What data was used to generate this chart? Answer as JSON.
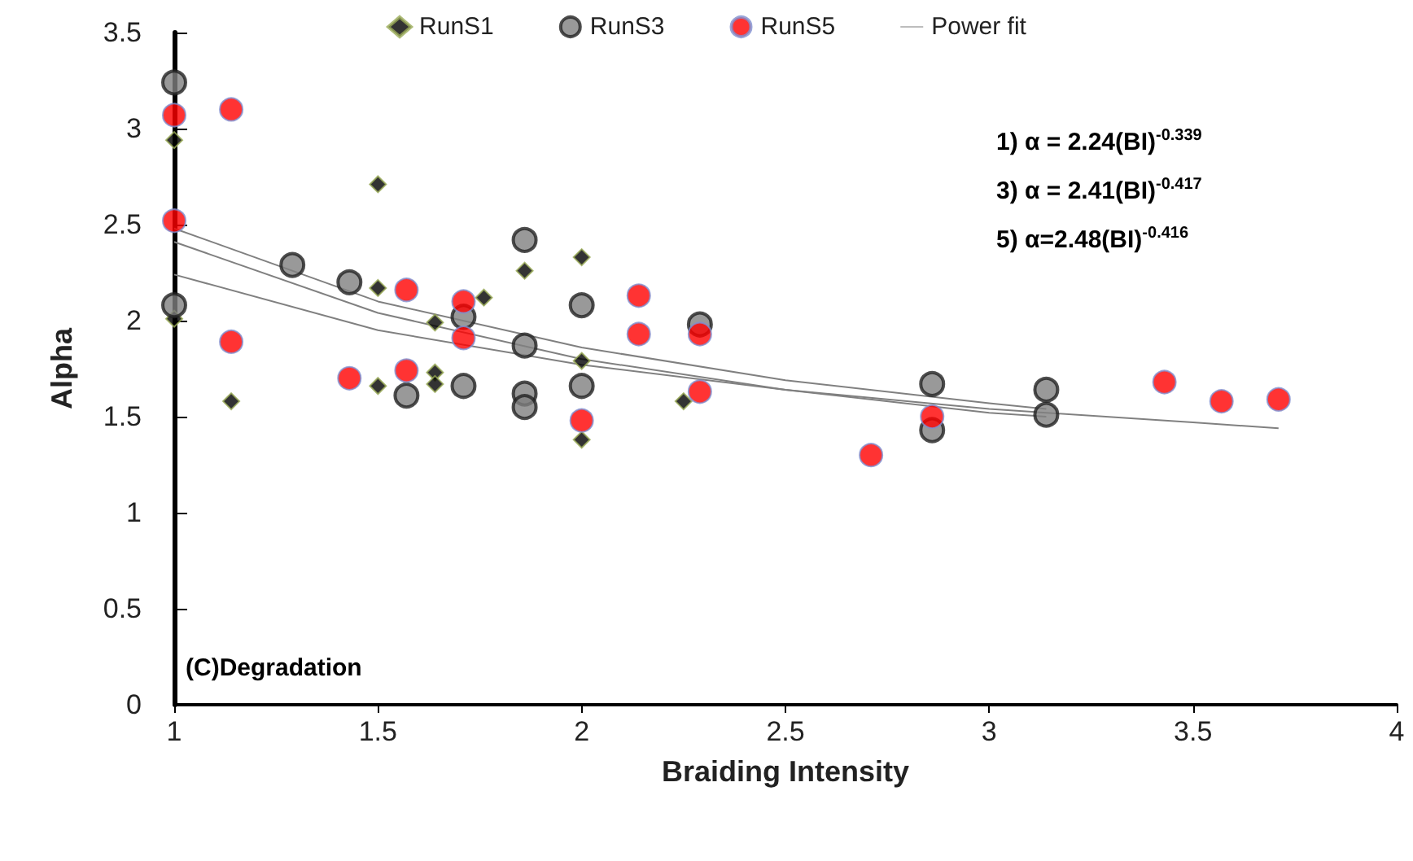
{
  "chart_data": {
    "type": "scatter",
    "xlabel": "Braiding Intensity",
    "ylabel": "Alpha",
    "xlim": [
      1,
      4
    ],
    "xticks": [
      1,
      1.5,
      2,
      2.5,
      3,
      3.5,
      4
    ],
    "ylim": [
      0,
      3.5
    ],
    "yticks": [
      0,
      0.5,
      1,
      1.5,
      2,
      2.5,
      3,
      3.5
    ],
    "grid": false,
    "legend": "top",
    "series": [
      {
        "name": "RunS1",
        "color": "#000000",
        "marker": "diamond",
        "x": [
          1,
          1,
          1.14,
          1.5,
          1.5,
          1.5,
          1.64,
          1.64,
          1.64,
          1.76,
          1.86,
          2,
          2,
          2,
          2.25
        ],
        "values": [
          2.94,
          2.01,
          1.58,
          2.71,
          2.17,
          1.66,
          1.99,
          1.73,
          1.67,
          2.12,
          2.26,
          2.33,
          1.79,
          1.38,
          1.58
        ]
      },
      {
        "name": "RunS3",
        "color": "#808080",
        "marker": "circle",
        "x": [
          1,
          1,
          1.29,
          1.43,
          1.57,
          1.71,
          1.71,
          1.86,
          1.86,
          1.86,
          1.86,
          2,
          2,
          2.29,
          2.86,
          2.86,
          3.14,
          3.14
        ],
        "values": [
          3.24,
          2.08,
          2.29,
          2.2,
          1.61,
          2.02,
          1.66,
          2.42,
          1.87,
          1.62,
          1.55,
          2.08,
          1.66,
          1.98,
          1.67,
          1.43,
          1.64,
          1.51
        ]
      },
      {
        "name": "RunS5",
        "color": "#ff0000",
        "marker": "circle",
        "x": [
          1,
          1,
          1.14,
          1.14,
          1.43,
          1.57,
          1.57,
          1.71,
          1.71,
          2,
          2.14,
          2.14,
          2.29,
          2.29,
          2.71,
          2.86,
          3.43,
          3.57,
          3.71
        ],
        "values": [
          3.07,
          2.52,
          3.1,
          1.89,
          1.7,
          2.16,
          1.74,
          2.1,
          1.91,
          1.48,
          2.13,
          1.93,
          1.93,
          1.63,
          1.3,
          1.5,
          1.68,
          1.58,
          1.59
        ]
      },
      {
        "name": "Power fit",
        "type": "line",
        "color": "#808080",
        "marker": "none",
        "x": [
          1,
          1.5,
          2,
          2.5,
          3,
          3.5,
          3.71
        ],
        "values": [
          2.24,
          1.95,
          1.77,
          1.64,
          1.54,
          1.47,
          1.44
        ]
      },
      {
        "type": "line",
        "color": "#808080",
        "marker": "none",
        "x": [
          1,
          1.5,
          2,
          2.5,
          3,
          3.14
        ],
        "values": [
          2.41,
          2.04,
          1.8,
          1.64,
          1.52,
          1.5
        ]
      },
      {
        "type": "line",
        "color": "#808080",
        "marker": "none",
        "x": [
          1,
          1.5,
          2,
          2.5,
          3,
          3.14
        ],
        "values": [
          2.48,
          2.1,
          1.86,
          1.69,
          1.57,
          1.54
        ]
      }
    ],
    "annotations": [
      "1) α = 2.24(BI)$^{-0.339}$",
      "3) α = 2.41(BI)$^{-0.417}$",
      "5) α=2.48(BI)$^{-0.416}$",
      "(C)Degradation"
    ]
  }
}
